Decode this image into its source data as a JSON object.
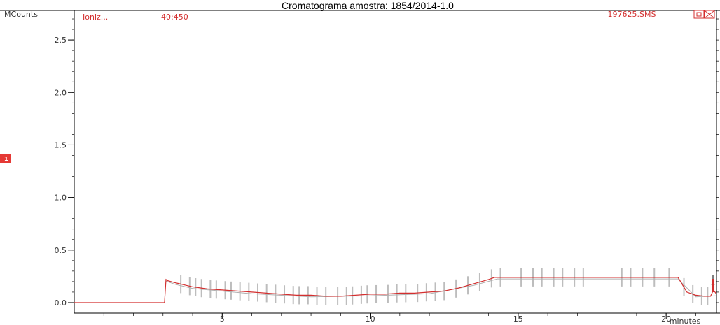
{
  "chart_data": {
    "type": "line",
    "title": "Cromatograma amostra: 1854/2014-1.0",
    "ylabel": "MCounts",
    "xlabel": "minutes",
    "trace_label": "Ioniz...",
    "mass_range": "40:450",
    "file_name": "197625.SMS",
    "marker_label": "1",
    "xlim": [
      0,
      21.7
    ],
    "ylim": [
      -0.1,
      2.78
    ],
    "xticks": [
      5,
      10,
      15,
      20
    ],
    "xtick_labels": [
      "5",
      "10",
      "15",
      "20"
    ],
    "yticks": [
      0.0,
      0.5,
      1.0,
      1.5,
      2.0,
      2.5
    ],
    "ytick_labels": [
      "0.0",
      "0.5",
      "1.0",
      "1.5",
      "2.0",
      "2.5"
    ],
    "grid": false,
    "colors": {
      "trace": "#d32f2f",
      "baseline": "#b0b0b0",
      "peaks": "#bdbdbd",
      "text_red": "#d32f2f"
    },
    "series": [
      {
        "x": [
          0,
          3.05,
          3.1,
          3.15,
          3.4,
          3.7,
          4.0,
          4.5,
          5.0,
          5.5,
          6.0,
          6.5,
          7.0,
          7.5,
          8.0,
          8.5,
          9.0,
          9.5,
          10.0,
          10.5,
          11.0,
          11.5,
          12.0,
          12.5,
          13.0,
          13.5,
          14.0,
          14.2,
          14.5,
          15.0,
          16.0,
          17.0,
          18.0,
          19.0,
          20.0,
          20.4,
          20.7,
          21.0,
          21.3,
          21.5,
          21.6,
          21.7
        ],
        "y": [
          0.0,
          0.0,
          0.22,
          0.21,
          0.19,
          0.17,
          0.15,
          0.13,
          0.12,
          0.11,
          0.1,
          0.09,
          0.08,
          0.07,
          0.07,
          0.06,
          0.06,
          0.07,
          0.08,
          0.08,
          0.09,
          0.09,
          0.1,
          0.11,
          0.14,
          0.18,
          0.22,
          0.24,
          0.24,
          0.24,
          0.24,
          0.24,
          0.24,
          0.24,
          0.24,
          0.24,
          0.1,
          0.07,
          0.06,
          0.06,
          0.12,
          0.08
        ]
      }
    ],
    "peak_ticks": [
      3.6,
      3.9,
      4.1,
      4.3,
      4.6,
      4.8,
      5.1,
      5.3,
      5.6,
      5.9,
      6.2,
      6.5,
      6.8,
      7.1,
      7.4,
      7.6,
      7.9,
      8.2,
      8.5,
      8.9,
      9.2,
      9.4,
      9.7,
      9.9,
      10.2,
      10.6,
      10.9,
      11.2,
      11.6,
      11.9,
      12.2,
      12.5,
      12.9,
      13.3,
      13.7,
      14.1,
      14.4,
      15.1,
      15.5,
      15.8,
      16.2,
      16.5,
      16.9,
      17.2,
      18.5,
      18.8,
      19.2,
      19.6,
      20.1,
      20.6,
      20.9,
      21.2,
      21.4
    ]
  }
}
